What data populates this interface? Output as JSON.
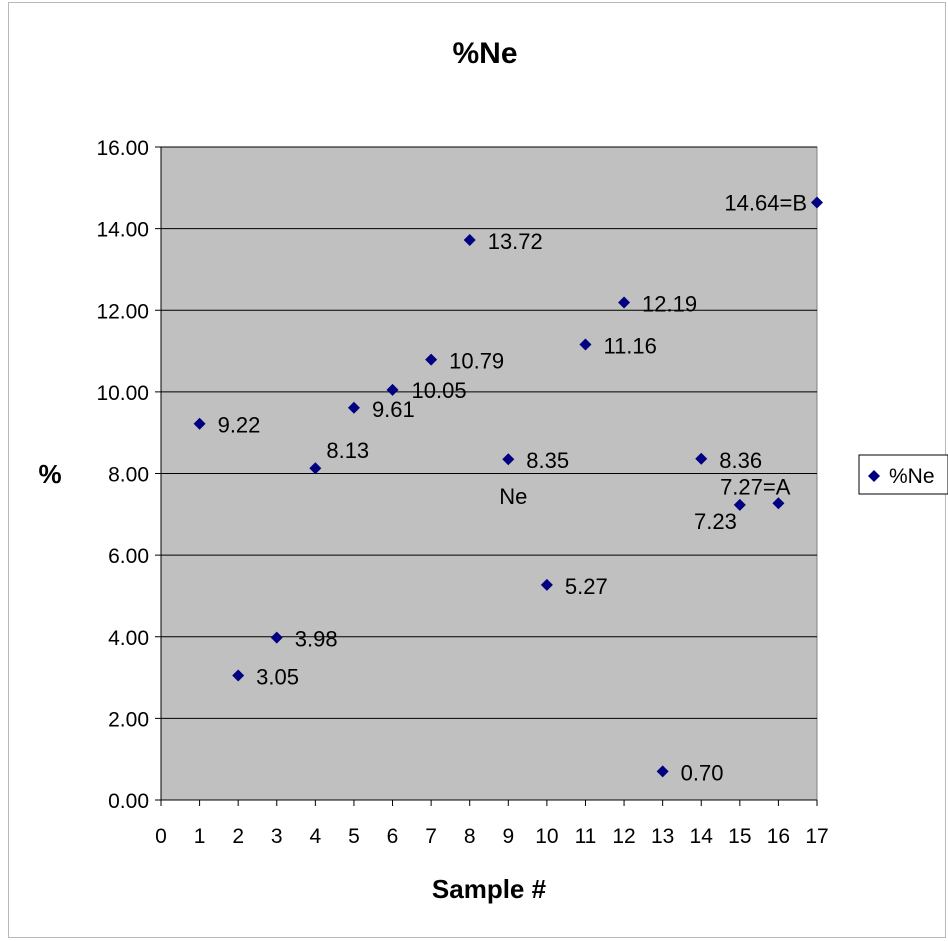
{
  "chart_data": {
    "type": "scatter",
    "title": "%Ne",
    "xlabel": "Sample #",
    "ylabel": "%",
    "xlim": [
      0,
      17
    ],
    "ylim": [
      0,
      16
    ],
    "x_ticks": [
      "0",
      "1",
      "2",
      "3",
      "4",
      "5",
      "6",
      "7",
      "8",
      "9",
      "10",
      "11",
      "12",
      "13",
      "14",
      "15",
      "16",
      "17"
    ],
    "y_ticks": [
      "0.00",
      "2.00",
      "4.00",
      "6.00",
      "8.00",
      "10.00",
      "12.00",
      "14.00",
      "16.00"
    ],
    "grid": "horizontal",
    "plot_background": "#c0c0c0",
    "marker_color": "#000080",
    "legend_position": "right",
    "series": [
      {
        "name": "%Ne",
        "points": [
          {
            "x": 1,
            "y": 9.22,
            "label": "9.22"
          },
          {
            "x": 2,
            "y": 3.05,
            "label": "3.05"
          },
          {
            "x": 3,
            "y": 3.98,
            "label": "3.98"
          },
          {
            "x": 4,
            "y": 8.13,
            "label": "8.13"
          },
          {
            "x": 5,
            "y": 9.61,
            "label": "9.61"
          },
          {
            "x": 6,
            "y": 10.05,
            "label": "10.05"
          },
          {
            "x": 7,
            "y": 10.79,
            "label": "10.79"
          },
          {
            "x": 8,
            "y": 13.72,
            "label": "13.72"
          },
          {
            "x": 9,
            "y": 8.35,
            "label": "8.35"
          },
          {
            "x": 10,
            "y": 5.27,
            "label": "5.27"
          },
          {
            "x": 11,
            "y": 11.16,
            "label": "11.16"
          },
          {
            "x": 12,
            "y": 12.19,
            "label": "12.19"
          },
          {
            "x": 13,
            "y": 0.7,
            "label": "0.70"
          },
          {
            "x": 14,
            "y": 8.36,
            "label": "8.36"
          },
          {
            "x": 15,
            "y": 7.23,
            "label": "7.23"
          },
          {
            "x": 16,
            "y": 7.27,
            "label": "7.27=A"
          },
          {
            "x": 17,
            "y": 14.64,
            "label": "14.64=B"
          }
        ]
      }
    ],
    "annotations": [
      {
        "text": "Ne",
        "x": 9,
        "y": 7.5
      }
    ]
  }
}
